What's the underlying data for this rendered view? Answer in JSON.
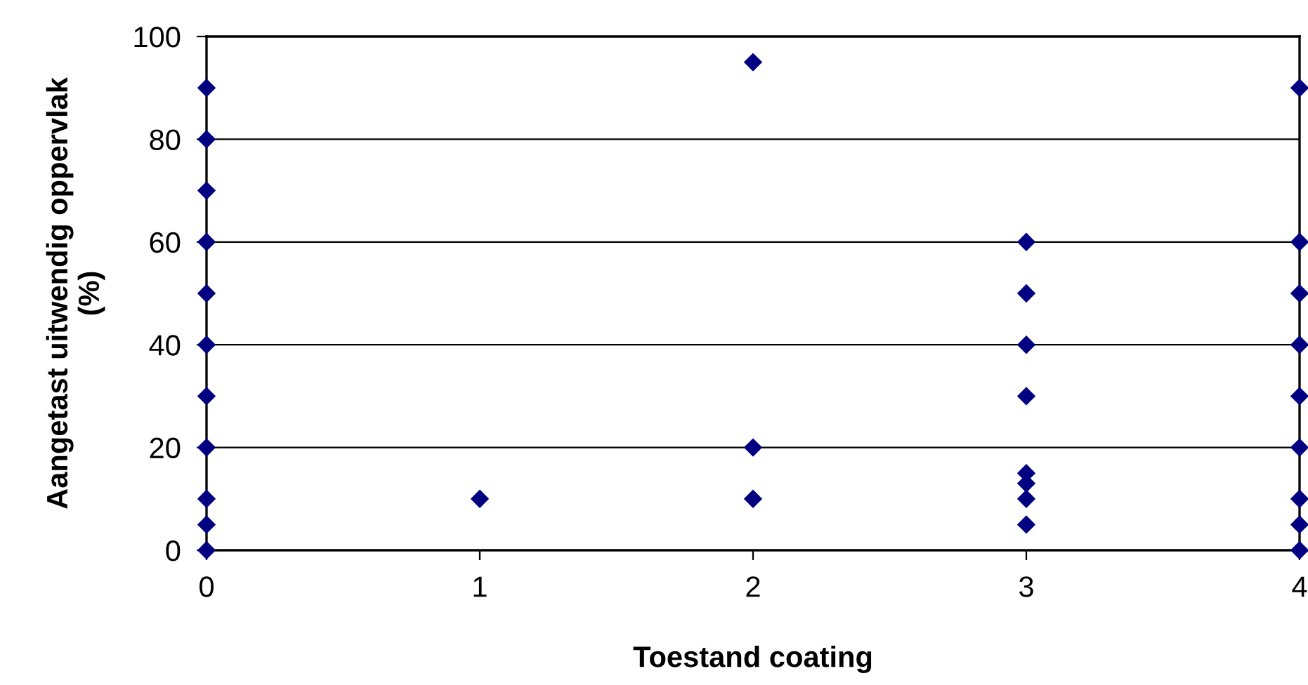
{
  "chart_data": {
    "type": "scatter",
    "xlabel": "Toestand coating",
    "ylabel": "Aangetast uitwendig oppervlak\n(%)",
    "series": [
      {
        "color": "#000080",
        "x": [
          0,
          0,
          0,
          0,
          0,
          0,
          0,
          0,
          0,
          0,
          0,
          1,
          2,
          2,
          2,
          3,
          3,
          3,
          3,
          3,
          3,
          3,
          3,
          4,
          4,
          4,
          4,
          4,
          4,
          4,
          4,
          4
        ],
        "values": [
          90,
          80,
          70,
          60,
          50,
          40,
          30,
          20,
          10,
          5,
          0,
          10,
          95,
          20,
          10,
          60,
          50,
          40,
          30,
          15,
          13,
          10,
          5,
          90,
          60,
          50,
          40,
          30,
          20,
          10,
          5,
          0
        ]
      }
    ],
    "marker": "diamond",
    "xlim": [
      0,
      4
    ],
    "xticks": [
      0,
      1,
      2,
      3,
      4
    ],
    "ylim": [
      0,
      100
    ],
    "yticks": [
      0,
      20,
      40,
      60,
      80,
      100
    ],
    "grid": "y",
    "legend": false
  }
}
